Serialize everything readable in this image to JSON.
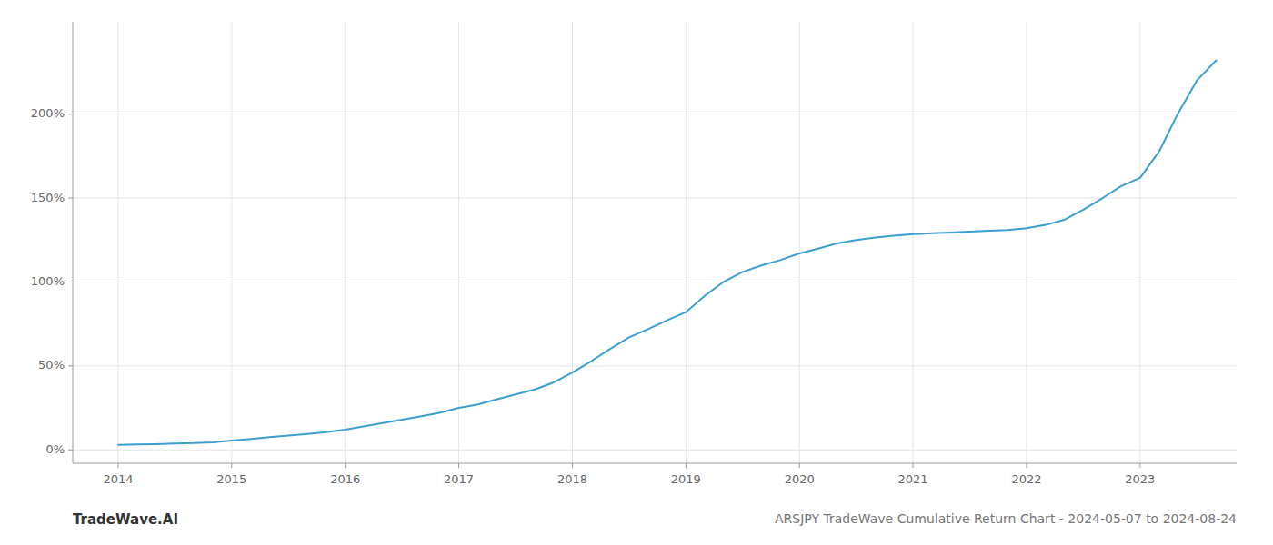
{
  "chart_data": {
    "type": "line",
    "title": "ARSJPY TradeWave Cumulative Return Chart - 2024-05-07 to 2024-08-24",
    "annotations": [
      "TradeWave.AI"
    ],
    "color": "#3a9fd1",
    "grid": true,
    "x": [
      2014.0,
      2014.17,
      2014.33,
      2014.5,
      2014.67,
      2014.83,
      2015.0,
      2015.17,
      2015.33,
      2015.5,
      2015.67,
      2015.83,
      2016.0,
      2016.17,
      2016.33,
      2016.5,
      2016.67,
      2016.83,
      2017.0,
      2017.17,
      2017.33,
      2017.5,
      2017.67,
      2017.83,
      2018.0,
      2018.17,
      2018.33,
      2018.5,
      2018.67,
      2018.83,
      2019.0,
      2019.17,
      2019.33,
      2019.5,
      2019.67,
      2019.83,
      2020.0,
      2020.17,
      2020.33,
      2020.5,
      2020.67,
      2020.83,
      2021.0,
      2021.17,
      2021.33,
      2021.5,
      2021.67,
      2021.83,
      2022.0,
      2022.17,
      2022.33,
      2022.5,
      2022.67,
      2022.83,
      2023.0,
      2023.17,
      2023.33,
      2023.5,
      2023.67
    ],
    "values": [
      3.0,
      3.2,
      3.4,
      3.8,
      4.0,
      4.5,
      5.5,
      6.5,
      7.5,
      8.5,
      9.5,
      10.5,
      12.0,
      14.0,
      16.0,
      18.0,
      20.0,
      22.0,
      25.0,
      27.0,
      30.0,
      33.0,
      36.0,
      40.0,
      46.0,
      53.0,
      60.0,
      67.0,
      72.0,
      77.0,
      82.0,
      92.0,
      100.0,
      106.0,
      110.0,
      113.0,
      117.0,
      120.0,
      123.0,
      125.0,
      126.5,
      127.5,
      128.5,
      129.0,
      129.5,
      130.0,
      130.5,
      131.0,
      132.0,
      134.0,
      137.0,
      143.0,
      150.0,
      157.0,
      162.0,
      178.0,
      200.0,
      220.0,
      232.0
    ],
    "xlim": [
      2013.6,
      2023.85
    ],
    "ylim": [
      -8,
      255
    ],
    "xticks": [
      2014,
      2015,
      2016,
      2017,
      2018,
      2019,
      2020,
      2021,
      2022,
      2023
    ],
    "yticks": [
      {
        "value": 0,
        "label": "0%"
      },
      {
        "value": 50,
        "label": "50%"
      },
      {
        "value": 100,
        "label": "100%"
      },
      {
        "value": 150,
        "label": "150%"
      },
      {
        "value": 200,
        "label": "200%"
      }
    ]
  }
}
